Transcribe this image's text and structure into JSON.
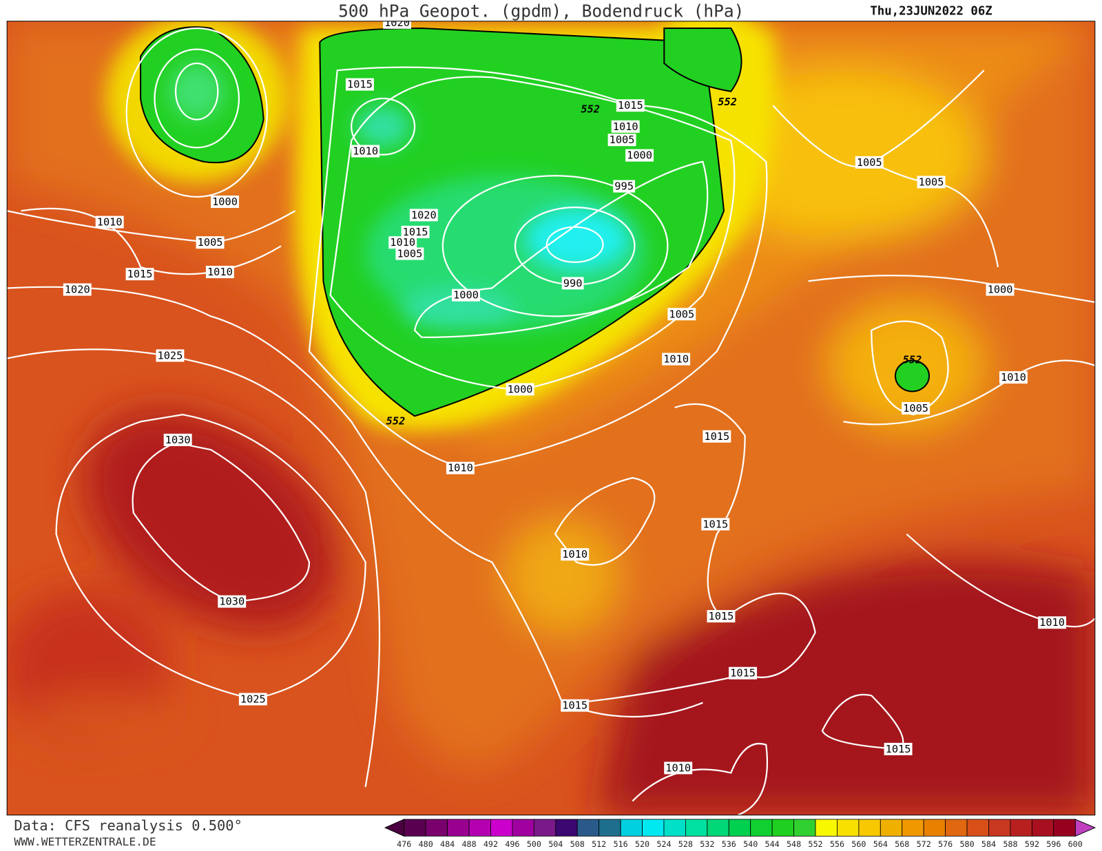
{
  "header": {
    "title": "500 hPa Geopot. (gpdm), Bodendruck (hPa)",
    "date": "Thu,23JUN2022 06Z"
  },
  "map": {
    "isobar_labels": [
      "1020",
      "1015",
      "1015",
      "1010",
      "1005",
      "1000",
      "995",
      "990",
      "1010",
      "1020",
      "1015",
      "1010",
      "1005",
      "1000",
      "1000",
      "1010",
      "1005",
      "1015",
      "1010",
      "1020",
      "1025",
      "1030",
      "1030",
      "1025",
      "1000",
      "1010",
      "1005",
      "1010",
      "1015",
      "1015",
      "1010",
      "1015",
      "1015",
      "1015",
      "1010",
      "1015",
      "1010",
      "1010",
      "1005",
      "1000",
      "1005",
      "1005"
    ],
    "contour_labels": [
      "552",
      "552",
      "552",
      "552"
    ]
  },
  "colorbar": {
    "labels": [
      476,
      480,
      484,
      488,
      492,
      496,
      500,
      504,
      508,
      512,
      516,
      520,
      524,
      528,
      532,
      536,
      540,
      544,
      548,
      552,
      556,
      560,
      564,
      568,
      572,
      576,
      580,
      584,
      588,
      592,
      596,
      600
    ],
    "colors": [
      "#5a0050",
      "#7a006e",
      "#9a0090",
      "#b400b0",
      "#cc00cc",
      "#a000a0",
      "#7a1a8a",
      "#3a0870",
      "#2a5a8a",
      "#1e6e8e",
      "#00d0e0",
      "#00e8f0",
      "#00e0c8",
      "#00e0a0",
      "#00d878",
      "#00d050",
      "#10d030",
      "#20d020",
      "#30d030",
      "#f8f800",
      "#f8e000",
      "#f8c800",
      "#f0b000",
      "#f09800",
      "#e88000",
      "#e06810",
      "#d85018",
      "#c83820",
      "#b82020",
      "#a81020",
      "#980020"
    ]
  },
  "footer": {
    "source": "Data: CFS reanalysis 0.500°",
    "website": "WWW.WETTERZENTRALE.DE"
  }
}
